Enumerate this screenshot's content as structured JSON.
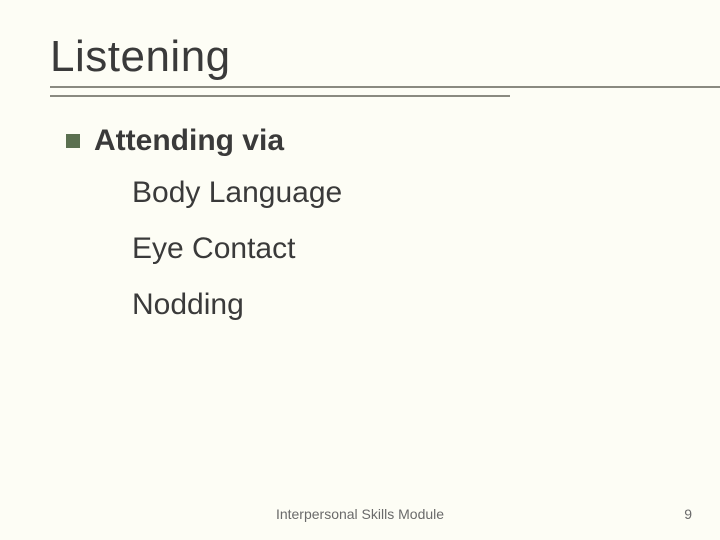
{
  "slide": {
    "title": "Listening",
    "title_fontsize": 44,
    "title_color": "#3a3a3a",
    "bullet": {
      "color": "#5b7050",
      "size": 14,
      "text": "Attending via",
      "text_fontsize": 30,
      "text_weight": 700
    },
    "sub_items": [
      "Body Language",
      "Eye Contact",
      "Nodding"
    ],
    "sub_fontsize": 30,
    "footer": "Interpersonal Skills Module",
    "page_number": "9",
    "background_color": "#fdfdf5",
    "line_color": "#8a8a80",
    "line_long_width": 720,
    "line_short_width": 460
  }
}
